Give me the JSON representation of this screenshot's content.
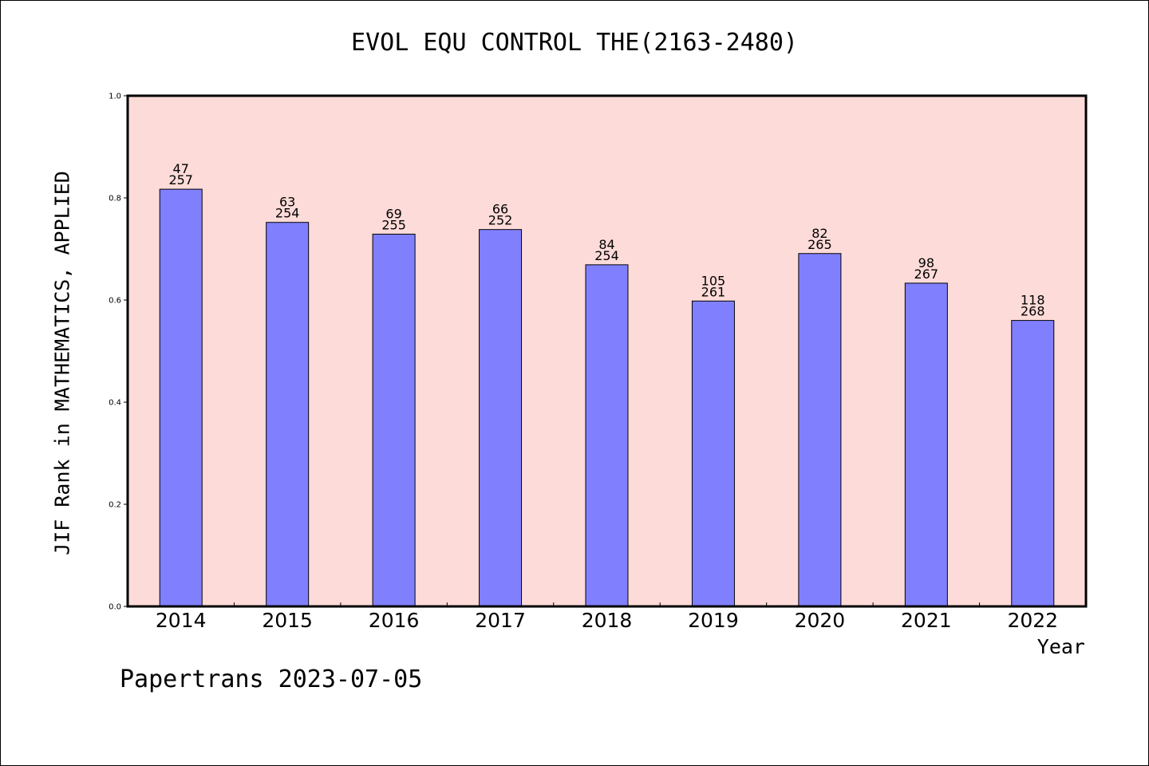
{
  "chart_data": {
    "type": "bar",
    "title": "EVOL EQU CONTROL THE(2163-2480)",
    "xlabel": "Year",
    "ylabel": "JIF Rank in MATHEMATICS, APPLIED",
    "ylim": [
      0,
      1.0
    ],
    "yticks": [
      "0.0",
      "0.2",
      "0.4",
      "0.6",
      "0.8",
      "1.0"
    ],
    "categories": [
      "2014",
      "2015",
      "2016",
      "2017",
      "2018",
      "2019",
      "2020",
      "2021",
      "2022"
    ],
    "values": [
      0.817,
      0.752,
      0.729,
      0.738,
      0.669,
      0.598,
      0.691,
      0.633,
      0.56
    ],
    "rank": [
      "47",
      "63",
      "69",
      "66",
      "84",
      "105",
      "82",
      "98",
      "118"
    ],
    "total": [
      "257",
      "254",
      "255",
      "252",
      "254",
      "261",
      "265",
      "267",
      "268"
    ],
    "grid": false,
    "colors": {
      "bar": "#8080ff",
      "plot_background": "#fddbd9",
      "axis": "#000000"
    }
  },
  "footer": "Papertrans 2023-07-05"
}
